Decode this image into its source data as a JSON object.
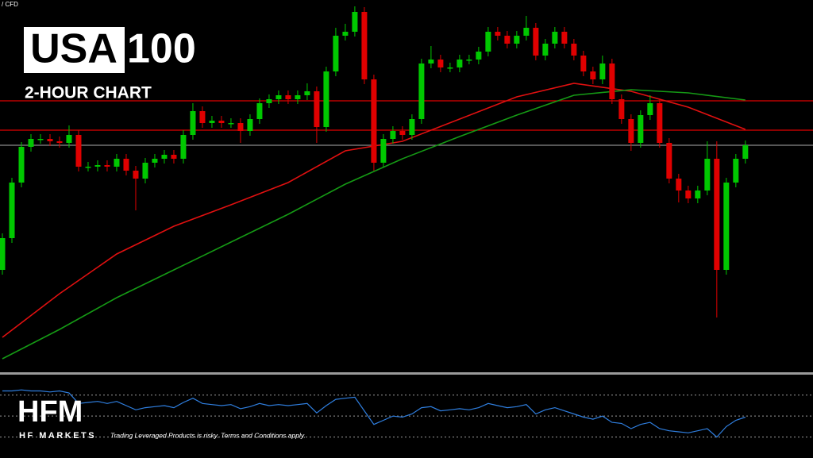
{
  "header": {
    "platform_label": "/ CFD",
    "symbol_box": "USA",
    "symbol_rest": "100",
    "subtitle": "2-HOUR CHART"
  },
  "chart_data": [
    {
      "type": "candlestick",
      "up_color": "#00c800",
      "down_color": "#e00000",
      "xlim": [
        -0.25,
        85.1
      ],
      "ylim": [
        0,
        470
      ],
      "open": [
        130,
        170,
        240,
        285,
        295,
        295,
        292,
        290,
        300,
        260,
        260,
        262,
        260,
        270,
        255,
        245,
        265,
        270,
        275,
        270,
        300,
        330,
        315,
        318,
        315,
        315,
        305,
        320,
        340,
        345,
        350,
        345,
        350,
        355,
        310,
        380,
        425,
        430,
        455,
        370,
        265,
        295,
        305,
        300,
        320,
        390,
        395,
        385,
        385,
        395,
        395,
        405,
        430,
        425,
        415,
        425,
        435,
        400,
        415,
        430,
        415,
        400,
        380,
        370,
        390,
        345,
        320,
        290,
        325,
        340,
        290,
        245,
        230,
        220,
        230,
        270,
        130,
        240,
        270
      ],
      "high": [
        176,
        246,
        291,
        301,
        301,
        301,
        298,
        312,
        306,
        266,
        268,
        268,
        276,
        276,
        261,
        271,
        276,
        281,
        281,
        306,
        340,
        336,
        324,
        324,
        321,
        321,
        326,
        346,
        351,
        356,
        356,
        356,
        365,
        361,
        386,
        435,
        440,
        462,
        461,
        376,
        301,
        311,
        311,
        326,
        396,
        412,
        401,
        391,
        401,
        401,
        411,
        436,
        436,
        431,
        431,
        450,
        441,
        421,
        436,
        436,
        421,
        406,
        386,
        400,
        396,
        351,
        326,
        331,
        350,
        346,
        296,
        251,
        236,
        236,
        292,
        292,
        246,
        276,
        293
      ],
      "low": [
        124,
        164,
        234,
        279,
        289,
        286,
        284,
        284,
        254,
        254,
        254,
        254,
        254,
        249,
        205,
        239,
        259,
        264,
        264,
        264,
        294,
        309,
        309,
        309,
        309,
        290,
        299,
        314,
        334,
        339,
        339,
        339,
        344,
        290,
        304,
        374,
        419,
        424,
        364,
        255,
        259,
        289,
        294,
        294,
        314,
        384,
        379,
        379,
        379,
        389,
        389,
        399,
        419,
        409,
        409,
        419,
        394,
        394,
        409,
        409,
        394,
        374,
        364,
        364,
        339,
        314,
        280,
        284,
        319,
        284,
        239,
        215,
        214,
        214,
        224,
        70,
        124,
        234,
        264
      ],
      "close": [
        170,
        240,
        285,
        295,
        295,
        292,
        290,
        300,
        260,
        260,
        262,
        260,
        270,
        255,
        245,
        265,
        270,
        275,
        270,
        300,
        330,
        315,
        318,
        315,
        315,
        305,
        320,
        340,
        345,
        350,
        345,
        350,
        355,
        310,
        380,
        425,
        430,
        455,
        370,
        265,
        295,
        305,
        300,
        320,
        390,
        395,
        385,
        385,
        395,
        395,
        405,
        430,
        425,
        415,
        425,
        435,
        400,
        415,
        430,
        415,
        400,
        380,
        370,
        390,
        345,
        320,
        290,
        325,
        340,
        290,
        245,
        230,
        220,
        230,
        270,
        130,
        240,
        270,
        287
      ],
      "moving_averages": [
        {
          "color": "#e01010",
          "x": [
            0,
            6,
            12,
            18,
            24,
            30,
            36,
            42,
            48,
            54,
            60,
            66,
            72,
            78
          ],
          "values": [
            45,
            100,
            150,
            185,
            212,
            240,
            280,
            292,
            320,
            348,
            365,
            355,
            335,
            307
          ]
        },
        {
          "color": "#159a15",
          "x": [
            0,
            6,
            12,
            18,
            24,
            30,
            36,
            42,
            48,
            54,
            60,
            66,
            72,
            78
          ],
          "values": [
            18,
            55,
            95,
            130,
            165,
            200,
            238,
            270,
            298,
            325,
            350,
            357,
            353,
            344
          ]
        }
      ],
      "levels": [
        {
          "value": 343,
          "color": "#e00000"
        },
        {
          "value": 306,
          "color": "#e00000"
        },
        {
          "value": 287,
          "color": "#8a8a8a"
        }
      ]
    },
    {
      "type": "line",
      "color": "#2f7fe0",
      "xlim": [
        -0.25,
        85.1
      ],
      "ylim": [
        10,
        88
      ],
      "values": [
        74,
        74,
        75,
        74,
        74,
        73,
        74,
        72,
        62,
        63,
        64,
        62,
        64,
        60,
        56,
        58,
        59,
        60,
        58,
        63,
        67,
        62,
        61,
        60,
        61,
        57,
        59,
        62,
        60,
        61,
        60,
        61,
        62,
        53,
        60,
        66,
        67,
        68,
        55,
        42,
        46,
        50,
        49,
        52,
        58,
        59,
        55,
        56,
        57,
        56,
        58,
        62,
        60,
        58,
        59,
        61,
        52,
        56,
        58,
        55,
        52,
        49,
        47,
        50,
        44,
        43,
        38,
        42,
        44,
        38,
        36,
        35,
        34,
        36,
        38,
        30,
        40,
        46,
        49
      ],
      "levels": [
        70,
        50,
        30
      ]
    }
  ],
  "footer": {
    "logo": "HFM",
    "brand": "HF MARKETS",
    "disclaimer": "Trading Leveraged Products is risky. Terms and Conditions apply."
  }
}
